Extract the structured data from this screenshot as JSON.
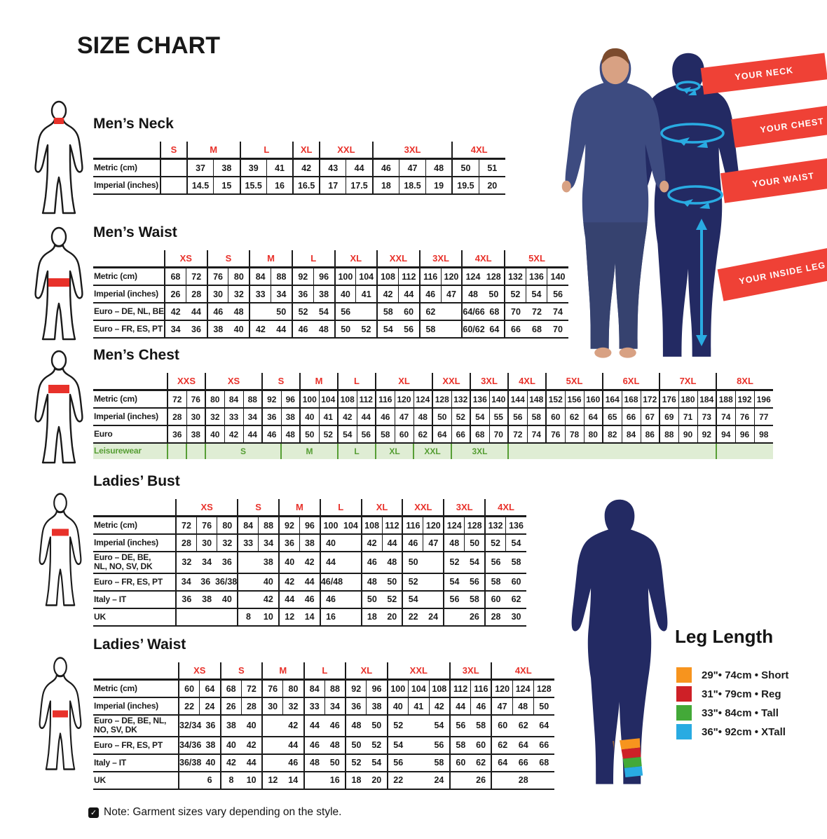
{
  "title": "SIZE CHART",
  "note": "Note: Garment sizes vary depending on the style.",
  "colors": {
    "accent_red": "#E8312A",
    "banner_red": "#EF4136",
    "navy": "#232A63",
    "clothes_navy": "#3D4B80",
    "cyan": "#29ABE2",
    "leisure_green": "#569E34",
    "leisure_bg": "#DFEDD4"
  },
  "illustration": {
    "labels": [
      "YOUR NECK",
      "YOUR CHEST",
      "YOUR WAIST",
      "YOUR INSIDE LEG"
    ]
  },
  "leg_length": {
    "title": "Leg Length",
    "items": [
      {
        "color": "#F7941E",
        "label": "29\"• 74cm • Short"
      },
      {
        "color": "#CE2027",
        "label": "31\"• 79cm • Reg"
      },
      {
        "color": "#43A938",
        "label": "33\"• 84cm • Tall"
      },
      {
        "color": "#29ABE2",
        "label": "36\"• 92cm • XTall"
      }
    ]
  },
  "sections": {
    "mens_neck": {
      "title": "Men’s Neck",
      "sizes": [
        {
          "label": "S",
          "span": 1
        },
        {
          "label": "M",
          "span": 2
        },
        {
          "label": "L",
          "span": 2
        },
        {
          "label": "XL",
          "span": 1
        },
        {
          "label": "XXL",
          "span": 2
        },
        {
          "label": "3XL",
          "span": 3
        },
        {
          "label": "4XL",
          "span": 2
        }
      ],
      "rows": [
        {
          "label": "Metric (cm)",
          "cells": [
            "",
            "37",
            "38",
            "39",
            "41",
            "42",
            "43",
            "44",
            "46",
            "47",
            "48",
            "50",
            "51"
          ]
        },
        {
          "label": "Imperial (inches)",
          "cells": [
            "",
            "14.5",
            "15",
            "15.5",
            "16",
            "16.5",
            "17",
            "17.5",
            "18",
            "18.5",
            "19",
            "19.5",
            "20"
          ]
        }
      ]
    },
    "mens_waist": {
      "title": "Men’s Waist",
      "sizes": [
        {
          "label": "XS",
          "span": 2
        },
        {
          "label": "S",
          "span": 2
        },
        {
          "label": "M",
          "span": 2
        },
        {
          "label": "L",
          "span": 2
        },
        {
          "label": "XL",
          "span": 2
        },
        {
          "label": "XXL",
          "span": 2
        },
        {
          "label": "3XL",
          "span": 2
        },
        {
          "label": "4XL",
          "span": 2
        },
        {
          "label": "5XL",
          "span": 3
        }
      ],
      "rows": [
        {
          "label": "Metric (cm)",
          "cells": [
            "68",
            "72",
            "76",
            "80",
            "84",
            "88",
            "92",
            "96",
            "100",
            "104",
            "108",
            "112",
            "116",
            "120",
            [
              2,
              "124",
              "128"
            ],
            "132",
            "136",
            "140"
          ]
        },
        {
          "label": "Imperial (inches)",
          "cells": [
            "26",
            "28",
            "30",
            "32",
            "33",
            "34",
            "36",
            "38",
            "40",
            "41",
            "42",
            "44",
            "46",
            "47",
            [
              2,
              "48",
              "50"
            ],
            "52",
            "54",
            "56"
          ]
        },
        {
          "label": "Euro – DE, NL, BE",
          "cells": [
            [
              2,
              "42",
              "44"
            ],
            [
              2,
              "46",
              "48"
            ],
            [
              2,
              "",
              "50"
            ],
            [
              2,
              "52",
              "54"
            ],
            [
              2,
              "56",
              ""
            ],
            [
              2,
              "58",
              "60"
            ],
            [
              2,
              "62",
              ""
            ],
            [
              2,
              "64/66",
              "68"
            ],
            [
              3,
              "70",
              "72",
              "74"
            ]
          ]
        },
        {
          "label": "Euro – FR, ES, PT",
          "cells": [
            [
              2,
              "34",
              "36"
            ],
            [
              2,
              "38",
              "40"
            ],
            [
              2,
              "42",
              "44"
            ],
            [
              2,
              "46",
              "48"
            ],
            [
              2,
              "50",
              "52"
            ],
            [
              2,
              "54",
              "56"
            ],
            [
              2,
              "58",
              ""
            ],
            [
              2,
              "60/62",
              "64"
            ],
            [
              3,
              "66",
              "68",
              "70"
            ]
          ]
        }
      ]
    },
    "mens_chest": {
      "title": "Men’s Chest",
      "sizes": [
        {
          "label": "XXS",
          "span": 2
        },
        {
          "label": "XS",
          "span": 3
        },
        {
          "label": "S",
          "span": 2
        },
        {
          "label": "M",
          "span": 2
        },
        {
          "label": "L",
          "span": 2
        },
        {
          "label": "XL",
          "span": 3
        },
        {
          "label": "XXL",
          "span": 2
        },
        {
          "label": "3XL",
          "span": 2
        },
        {
          "label": "4XL",
          "span": 2
        },
        {
          "label": "5XL",
          "span": 3
        },
        {
          "label": "6XL",
          "span": 3
        },
        {
          "label": "7XL",
          "span": 3
        },
        {
          "label": "8XL",
          "span": 3
        }
      ],
      "rows": [
        {
          "label": "Metric (cm)",
          "cells": [
            "72",
            "76",
            "80",
            "84",
            "88",
            "92",
            "96",
            "100",
            "104",
            "108",
            "112",
            "116",
            "120",
            "124",
            "128",
            "132",
            "136",
            "140",
            "144",
            "148",
            "152",
            "156",
            "160",
            "164",
            "168",
            "172",
            "176",
            "180",
            "184",
            "188",
            "192",
            "196"
          ]
        },
        {
          "label": "Imperial (inches)",
          "cells": [
            "28",
            "30",
            "32",
            "33",
            "34",
            "36",
            "38",
            "40",
            "41",
            "42",
            "44",
            "46",
            "47",
            "48",
            "50",
            "52",
            "54",
            "55",
            "56",
            "58",
            "60",
            "62",
            "64",
            "65",
            "66",
            "67",
            "69",
            "71",
            "73",
            "74",
            "76",
            "77"
          ]
        },
        {
          "label": "Euro",
          "cells": [
            "36",
            "38",
            "40",
            "42",
            "44",
            "46",
            "48",
            "50",
            "52",
            "54",
            "56",
            "58",
            "60",
            "62",
            "64",
            "66",
            "68",
            "70",
            "72",
            "74",
            "76",
            "78",
            "80",
            "82",
            "84",
            "86",
            "88",
            "90",
            "92",
            "94",
            "96",
            "98"
          ]
        }
      ],
      "leisure": {
        "label": "Leisurewear",
        "cells": [
          {
            "span": 1,
            "v": ""
          },
          {
            "span": 1,
            "v": ""
          },
          {
            "span": 4,
            "v": "S"
          },
          {
            "span": 3,
            "v": "M"
          },
          {
            "span": 2,
            "v": "L"
          },
          {
            "span": 2,
            "v": "XL"
          },
          {
            "span": 2,
            "v": "XXL"
          },
          {
            "span": 3,
            "v": "3XL"
          },
          {
            "span": 11,
            "v": ""
          },
          {
            "span": 3,
            "v": ""
          }
        ]
      }
    },
    "ladies_bust": {
      "title": "Ladies’ Bust",
      "sizes": [
        {
          "label": "XS",
          "span": 3
        },
        {
          "label": "S",
          "span": 2
        },
        {
          "label": "M",
          "span": 2
        },
        {
          "label": "L",
          "span": 2
        },
        {
          "label": "XL",
          "span": 2
        },
        {
          "label": "XXL",
          "span": 2
        },
        {
          "label": "3XL",
          "span": 2
        },
        {
          "label": "4XL",
          "span": 2
        }
      ],
      "rows": [
        {
          "label": "Metric (cm)",
          "cells": [
            "72",
            "76",
            "80",
            "84",
            "88",
            "92",
            "96",
            [
              2,
              "100",
              "104"
            ],
            "108",
            "112",
            "116",
            "120",
            "124",
            "128",
            "132",
            "136"
          ]
        },
        {
          "label": "Imperial (inches)",
          "cells": [
            "28",
            "30",
            "32",
            "33",
            "34",
            "36",
            "38",
            [
              2,
              "40",
              ""
            ],
            "42",
            "44",
            "46",
            "47",
            "48",
            "50",
            "52",
            "54"
          ]
        },
        {
          "label": "Euro –  DE, BE,\nNL, NO, SV, DK",
          "cells": [
            [
              3,
              "32",
              "34",
              "36"
            ],
            [
              2,
              "",
              "38"
            ],
            [
              2,
              "40",
              "42"
            ],
            [
              2,
              "44",
              ""
            ],
            [
              2,
              "46",
              "48"
            ],
            [
              2,
              "50",
              ""
            ],
            [
              2,
              "52",
              "54"
            ],
            [
              2,
              "56",
              "58"
            ]
          ]
        },
        {
          "label": "Euro – FR, ES, PT",
          "cells": [
            [
              3,
              "34",
              "36",
              "36/38"
            ],
            [
              2,
              "",
              "40"
            ],
            [
              2,
              "42",
              "44"
            ],
            [
              2,
              "46/48",
              ""
            ],
            [
              2,
              "48",
              "50"
            ],
            [
              2,
              "52",
              ""
            ],
            [
              2,
              "54",
              "56"
            ],
            [
              2,
              "58",
              "60"
            ]
          ]
        },
        {
          "label": "Italy – IT",
          "cells": [
            [
              3,
              "36",
              "38",
              "40"
            ],
            [
              2,
              "",
              "42"
            ],
            [
              2,
              "44",
              "46"
            ],
            [
              2,
              "46",
              ""
            ],
            [
              2,
              "50",
              "52"
            ],
            [
              2,
              "54",
              ""
            ],
            [
              2,
              "56",
              "58"
            ],
            [
              2,
              "60",
              "62"
            ]
          ]
        },
        {
          "label": "UK",
          "cells": [
            [
              3,
              "",
              "",
              ""
            ],
            [
              2,
              "8",
              "10"
            ],
            [
              2,
              "12",
              "14"
            ],
            [
              2,
              "16",
              ""
            ],
            [
              2,
              "18",
              "20"
            ],
            [
              2,
              "22",
              "24"
            ],
            [
              2,
              "",
              "26"
            ],
            [
              2,
              "28",
              "30"
            ]
          ]
        }
      ]
    },
    "ladies_waist": {
      "title": "Ladies’ Waist",
      "sizes": [
        {
          "label": "XS",
          "span": 2
        },
        {
          "label": "S",
          "span": 2
        },
        {
          "label": "M",
          "span": 2
        },
        {
          "label": "L",
          "span": 2
        },
        {
          "label": "XL",
          "span": 2
        },
        {
          "label": "XXL",
          "span": 3
        },
        {
          "label": "3XL",
          "span": 2
        },
        {
          "label": "4XL",
          "span": 3
        }
      ],
      "rows": [
        {
          "label": "Metric (cm)",
          "cells": [
            "60",
            "64",
            "68",
            "72",
            "76",
            "80",
            "84",
            "88",
            "92",
            "96",
            "100",
            "104",
            "108",
            "112",
            "116",
            "120",
            "124",
            "128"
          ]
        },
        {
          "label": "Imperial (inches)",
          "cells": [
            "22",
            "24",
            "26",
            "28",
            "30",
            "32",
            "33",
            "34",
            "36",
            "38",
            "40",
            "41",
            "42",
            "44",
            "46",
            "47",
            "48",
            "50"
          ]
        },
        {
          "label": "Euro – DE, BE, NL,\nNO, SV, DK",
          "cells": [
            [
              2,
              "32/34",
              "36"
            ],
            [
              2,
              "38",
              "40"
            ],
            [
              2,
              "",
              "42"
            ],
            [
              2,
              "44",
              "46"
            ],
            [
              2,
              "48",
              "50"
            ],
            [
              3,
              "52",
              "",
              "54"
            ],
            [
              2,
              "56",
              "58"
            ],
            [
              3,
              "60",
              "62",
              "64"
            ]
          ]
        },
        {
          "label": "Euro – FR, ES, PT",
          "cells": [
            [
              2,
              "34/36",
              "38"
            ],
            [
              2,
              "40",
              "42"
            ],
            [
              2,
              "",
              "44"
            ],
            [
              2,
              "46",
              "48"
            ],
            [
              2,
              "50",
              "52"
            ],
            [
              3,
              "54",
              "",
              "56"
            ],
            [
              2,
              "58",
              "60"
            ],
            [
              3,
              "62",
              "64",
              "66"
            ]
          ]
        },
        {
          "label": "Italy – IT",
          "cells": [
            [
              2,
              "36/38",
              "40"
            ],
            [
              2,
              "42",
              "44"
            ],
            [
              2,
              "",
              "46"
            ],
            [
              2,
              "48",
              "50"
            ],
            [
              2,
              "52",
              "54"
            ],
            [
              3,
              "56",
              "",
              "58"
            ],
            [
              2,
              "60",
              "62"
            ],
            [
              3,
              "64",
              "66",
              "68"
            ]
          ]
        },
        {
          "label": "UK",
          "cells": [
            [
              2,
              "",
              "6"
            ],
            [
              2,
              "8",
              "10"
            ],
            [
              2,
              "12",
              "14"
            ],
            [
              2,
              "",
              "16"
            ],
            [
              2,
              "18",
              "20"
            ],
            [
              3,
              "22",
              "",
              "24"
            ],
            [
              2,
              "",
              "26"
            ],
            [
              3,
              "",
              "28",
              ""
            ]
          ]
        }
      ]
    }
  }
}
